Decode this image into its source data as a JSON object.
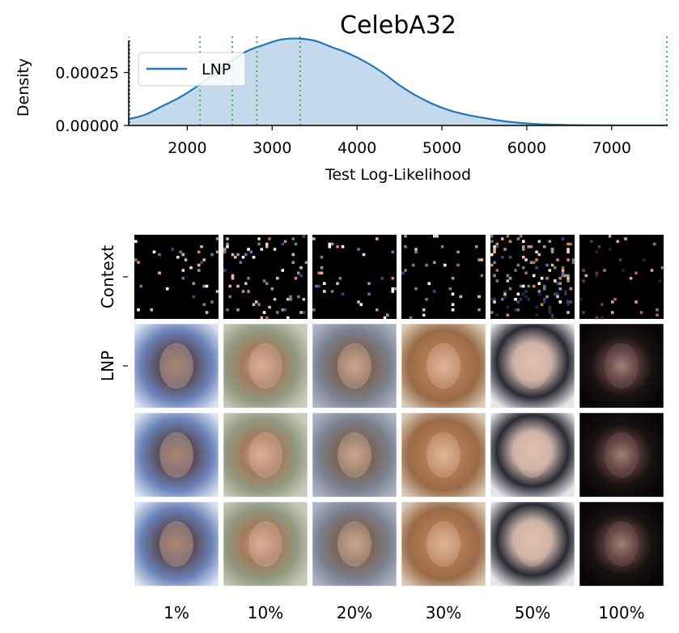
{
  "chart_data": [
    {
      "type": "area",
      "title": "CelebA32",
      "xlabel": "Test Log-Likelihood",
      "ylabel": "Density",
      "xlim": [
        1310,
        7660
      ],
      "ylim": [
        0,
        0.00042
      ],
      "xticks": [
        2000,
        3000,
        4000,
        5000,
        6000,
        7000
      ],
      "xtick_labels": [
        "2000",
        "3000",
        "4000",
        "5000",
        "6000",
        "7000"
      ],
      "yticks": [
        0,
        0.00025
      ],
      "ytick_labels": [
        "0.00000",
        "0.00025"
      ],
      "legend": {
        "position": "top-left",
        "entries": [
          "LNP"
        ]
      },
      "series": [
        {
          "name": "LNP",
          "color": "#1f77b4",
          "fill_color": "#c4d9ec",
          "x": [
            1310,
            1500,
            1700,
            1900,
            2100,
            2300,
            2500,
            2700,
            2900,
            3100,
            3300,
            3500,
            3700,
            3900,
            4100,
            4300,
            4500,
            4700,
            4900,
            5100,
            5300,
            5500,
            5700,
            5900,
            6100,
            6300,
            6500,
            6700,
            7000,
            7300,
            7660
          ],
          "y": [
            3e-05,
            5e-05,
            9e-05,
            0.00013,
            0.00018,
            0.00024,
            0.0003,
            0.00035,
            0.00038,
            0.000405,
            0.00041,
            0.0004,
            0.00037,
            0.00034,
            0.0003,
            0.00025,
            0.00019,
            0.00014,
            0.0001,
            7e-05,
            5e-05,
            3.5e-05,
            2.2e-05,
            1.3e-05,
            7e-06,
            4e-06,
            2e-06,
            1e-06,
            4e-07,
            1e-07,
            0.0
          ]
        }
      ],
      "vlines": {
        "color": "#4daf4a",
        "style": "dotted",
        "x": [
          1310,
          2150,
          2530,
          2820,
          3330,
          7650
        ]
      }
    }
  ],
  "image_grid": {
    "row_labels": [
      "Context",
      "LNP"
    ],
    "column_labels": [
      "1%",
      "10%",
      "20%",
      "30%",
      "50%",
      "100%"
    ],
    "cells": [
      [
        "sparse-context",
        "sparse-context",
        "sparse-context",
        "sparse-context",
        "dense-context",
        "sparse-context-dark"
      ],
      [
        "face-blue",
        "face-green",
        "face-gray",
        "face-warm",
        "face-white",
        "face-dark"
      ],
      [
        "face-blue",
        "face-green",
        "face-gray",
        "face-warm",
        "face-white",
        "face-dark"
      ],
      [
        "face-blue",
        "face-green",
        "face-gray",
        "face-warm",
        "face-white",
        "face-dark"
      ]
    ]
  }
}
